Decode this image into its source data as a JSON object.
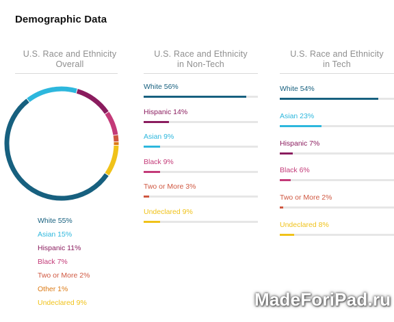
{
  "page_title": "Demographic Data",
  "watermark": "MadeForiPad.ru",
  "colors": {
    "white": "#17607f",
    "asian": "#2db7dd",
    "hispanic": "#8a1c5e",
    "black": "#c33a78",
    "two_or_more": "#cf5740",
    "other": "#dc7a14",
    "undeclared": "#f0c219",
    "track": "#e6e6e6",
    "rule": "#d9d9d9"
  },
  "chart_data": [
    {
      "type": "pie",
      "title_line1": "U.S. Race and Ethnicity",
      "title_line2": "Overall",
      "series": [
        {
          "name": "White",
          "label": "White 55%",
          "value": 55,
          "color": "#17607f"
        },
        {
          "name": "Asian",
          "label": "Asian 15%",
          "value": 15,
          "color": "#2db7dd"
        },
        {
          "name": "Hispanic",
          "label": "Hispanic 11%",
          "value": 11,
          "color": "#8a1c5e"
        },
        {
          "name": "Black",
          "label": "Black 7%",
          "value": 7,
          "color": "#c33a78"
        },
        {
          "name": "Two or More",
          "label": "Two or More 2%",
          "value": 2,
          "color": "#cf5740"
        },
        {
          "name": "Other",
          "label": "Other 1%",
          "value": 1,
          "color": "#dc7a14"
        },
        {
          "name": "Undeclared",
          "label": "Undeclared 9%",
          "value": 9,
          "color": "#f0c219"
        }
      ]
    },
    {
      "type": "bar",
      "orientation": "horizontal",
      "title_line1": "U.S. Race and Ethnicity",
      "title_line2": "in Non-Tech",
      "xlim": [
        0,
        100
      ],
      "series": [
        {
          "name": "White",
          "label": "White 56%",
          "value": 56,
          "color": "#17607f"
        },
        {
          "name": "Hispanic",
          "label": "Hispanic 14%",
          "value": 14,
          "color": "#8a1c5e"
        },
        {
          "name": "Asian",
          "label": "Asian 9%",
          "value": 9,
          "color": "#2db7dd"
        },
        {
          "name": "Black",
          "label": "Black 9%",
          "value": 9,
          "color": "#c33a78"
        },
        {
          "name": "Two or More",
          "label": "Two or More 3%",
          "value": 3,
          "color": "#cf5740"
        },
        {
          "name": "Undeclared",
          "label": "Undeclared 9%",
          "value": 9,
          "color": "#f0c219"
        }
      ]
    },
    {
      "type": "bar",
      "orientation": "horizontal",
      "title_line1": "U.S. Race and Ethnicity",
      "title_line2": "in Tech",
      "xlim": [
        0,
        100
      ],
      "series": [
        {
          "name": "White",
          "label": "White 54%",
          "value": 54,
          "color": "#17607f"
        },
        {
          "name": "Asian",
          "label": "Asian 23%",
          "value": 23,
          "color": "#2db7dd"
        },
        {
          "name": "Hispanic",
          "label": "Hispanic 7%",
          "value": 7,
          "color": "#8a1c5e"
        },
        {
          "name": "Black",
          "label": "Black 6%",
          "value": 6,
          "color": "#c33a78"
        },
        {
          "name": "Two or More",
          "label": "Two or More 2%",
          "value": 2,
          "color": "#cf5740"
        },
        {
          "name": "Undeclared",
          "label": "Undeclared 8%",
          "value": 8,
          "color": "#f0c219"
        }
      ]
    }
  ]
}
